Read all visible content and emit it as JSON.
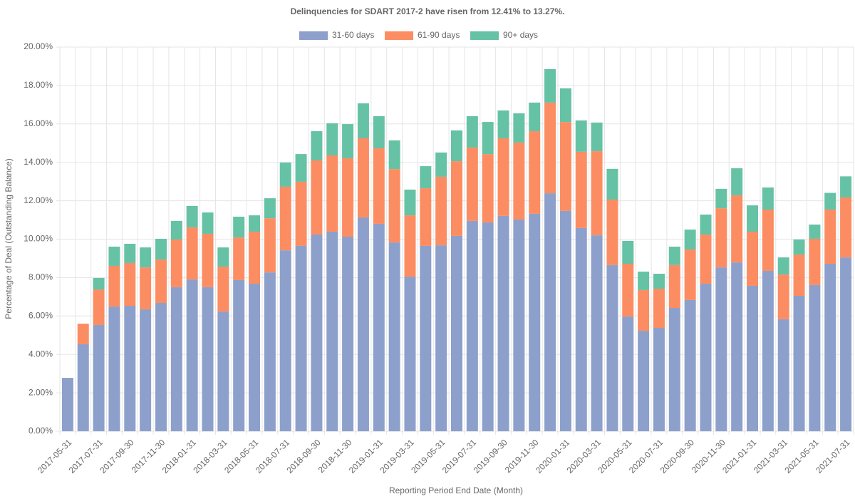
{
  "chart_data": {
    "type": "stacked_bar",
    "title": "Delinquencies for SDART 2017-2 have risen from 12.41% to 13.27%.",
    "x_label": "Reporting Period End Date (Month)",
    "y_label": "Percentage of Deal (Outstanding Balance)",
    "categories": [
      "2017-05-31",
      null,
      "2017-07-31",
      null,
      "2017-09-30",
      null,
      "2017-11-30",
      null,
      "2018-01-31",
      null,
      "2018-03-31",
      null,
      "2018-05-31",
      null,
      "2018-07-31",
      null,
      "2018-09-30",
      null,
      "2018-11-30",
      null,
      "2019-01-31",
      null,
      "2019-03-31",
      null,
      "2019-05-31",
      null,
      "2019-07-31",
      null,
      "2019-09-30",
      null,
      "2019-11-30",
      null,
      "2020-01-31",
      null,
      "2020-03-31",
      null,
      "2020-05-31",
      null,
      "2020-07-31",
      null,
      "2020-09-30",
      null,
      "2020-11-30",
      null,
      "2021-01-31",
      null,
      "2021-03-31",
      null,
      "2021-05-31",
      null,
      "2021-07-31"
    ],
    "series": [
      {
        "name": "31-60 days",
        "color": "#8da0cb",
        "values": [
          2.78,
          4.53,
          5.53,
          6.49,
          6.53,
          6.35,
          6.68,
          7.5,
          7.9,
          7.5,
          6.23,
          7.87,
          7.68,
          8.27,
          9.42,
          9.65,
          10.24,
          10.39,
          10.13,
          11.13,
          10.8,
          9.83,
          8.05,
          9.65,
          9.68,
          10.17,
          10.95,
          10.87,
          11.21,
          11.02,
          11.32,
          12.39,
          11.47,
          10.58,
          10.2,
          8.65,
          5.97,
          5.23,
          5.38,
          6.42,
          6.83,
          7.68,
          8.53,
          8.79,
          7.57,
          8.35,
          5.83,
          7.05,
          7.61,
          8.72,
          9.05
        ]
      },
      {
        "name": "61-90 days",
        "color": "#fc8d62",
        "values": [
          0,
          1.07,
          1.85,
          2.12,
          2.23,
          2.18,
          2.26,
          2.48,
          2.71,
          2.78,
          2.34,
          2.22,
          2.71,
          2.82,
          3.31,
          3.34,
          3.86,
          3.97,
          4.08,
          4.12,
          3.93,
          3.82,
          3.19,
          3.0,
          3.57,
          3.89,
          3.82,
          3.56,
          4.04,
          4.01,
          4.3,
          4.72,
          4.63,
          3.97,
          4.38,
          3.41,
          2.75,
          2.12,
          2.04,
          2.23,
          2.63,
          2.56,
          3.08,
          3.49,
          2.82,
          3.19,
          2.33,
          2.15,
          2.41,
          2.82,
          3.12
        ]
      },
      {
        "name": "90+ days",
        "color": "#66c2a5",
        "values": [
          0,
          0,
          0.6,
          1.0,
          1.0,
          1.04,
          1.08,
          0.97,
          1.12,
          1.11,
          1.0,
          1.08,
          0.85,
          1.04,
          1.26,
          1.44,
          1.52,
          1.67,
          1.78,
          1.82,
          1.67,
          1.49,
          1.34,
          1.15,
          1.26,
          1.6,
          1.63,
          1.67,
          1.45,
          1.52,
          1.49,
          1.74,
          1.75,
          1.63,
          1.49,
          1.6,
          1.19,
          0.96,
          0.78,
          0.96,
          1.04,
          1.04,
          1.01,
          1.41,
          1.37,
          1.15,
          0.89,
          0.78,
          0.74,
          0.87,
          1.1
        ]
      }
    ],
    "ylim": [
      0,
      20
    ],
    "yticks": [
      {
        "value": 0,
        "label": "0.00%"
      },
      {
        "value": 2,
        "label": "2.00%"
      },
      {
        "value": 4,
        "label": "4.00%"
      },
      {
        "value": 6,
        "label": "6.00%"
      },
      {
        "value": 8,
        "label": "8.00%"
      },
      {
        "value": 10,
        "label": "10.00%"
      },
      {
        "value": 12,
        "label": "12.00%"
      },
      {
        "value": 14,
        "label": "14.00%"
      },
      {
        "value": 16,
        "label": "16.00%"
      },
      {
        "value": 18,
        "label": "18.00%"
      },
      {
        "value": 20,
        "label": "20.00%"
      }
    ],
    "grid": true,
    "legend": "top"
  }
}
